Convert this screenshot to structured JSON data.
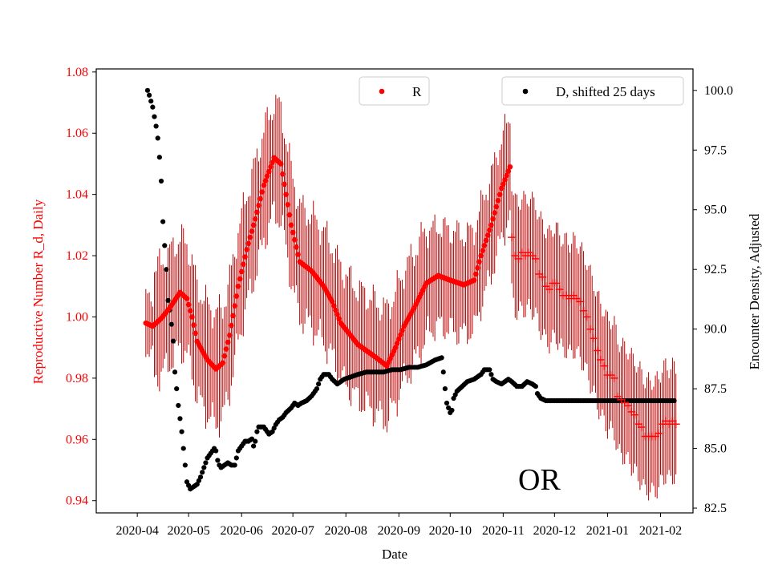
{
  "chart_data": {
    "type": "scatter",
    "xlabel": "Date",
    "ylabel_left": "Reproductive Number R_d, Daily",
    "ylabel_right": "Encounter Density, Adjusted",
    "annotation": "OR",
    "x_ticks": [
      "2020-04",
      "2020-05",
      "2020-06",
      "2020-07",
      "2020-08",
      "2020-09",
      "2020-10",
      "2020-11",
      "2020-12",
      "2021-01",
      "2021-02"
    ],
    "y_left_ticks": [
      "0.94",
      "0.96",
      "0.98",
      "1.00",
      "1.02",
      "1.04",
      "1.06",
      "1.08"
    ],
    "y_right_ticks": [
      "82.5",
      "85.0",
      "87.5",
      "90.0",
      "92.5",
      "95.0",
      "97.5",
      "100.0"
    ],
    "y_left_range": [
      0.936,
      1.081
    ],
    "y_right_range": [
      82.3,
      100.9
    ],
    "x_range_days_from_2020_03_01": [
      7,
      356
    ],
    "legend": {
      "r_label": "R",
      "d_label": "D, shifted 25 days"
    },
    "colors": {
      "r": "#ff0000",
      "error_bar": "#bb0000",
      "d": "#000000",
      "left_axis": "#ff0000"
    },
    "r_anchor_points": [
      [
        36,
        0.998
      ],
      [
        40,
        0.997
      ],
      [
        45,
        0.9995
      ],
      [
        50,
        1.003
      ],
      [
        56,
        1.008
      ],
      [
        60,
        1.006
      ],
      [
        63,
        1.0
      ],
      [
        66,
        0.992
      ],
      [
        72,
        0.986
      ],
      [
        77,
        0.983
      ],
      [
        81,
        0.985
      ],
      [
        85,
        0.994
      ],
      [
        90,
        1.01
      ],
      [
        95,
        1.022
      ],
      [
        100,
        1.032
      ],
      [
        105,
        1.043
      ],
      [
        111,
        1.052
      ],
      [
        115,
        1.05
      ],
      [
        118,
        1.04
      ],
      [
        121,
        1.03
      ],
      [
        126,
        1.018
      ],
      [
        133,
        1.015
      ],
      [
        140,
        1.01
      ],
      [
        145,
        1.005
      ],
      [
        150,
        0.998
      ],
      [
        160,
        0.991
      ],
      [
        170,
        0.987
      ],
      [
        177,
        0.984
      ],
      [
        182,
        0.99
      ],
      [
        187,
        0.997
      ],
      [
        193,
        1.003
      ],
      [
        200,
        1.011
      ],
      [
        207,
        1.0135
      ],
      [
        214,
        1.012
      ],
      [
        222,
        1.0105
      ],
      [
        228,
        1.012
      ],
      [
        232,
        1.02
      ],
      [
        238,
        1.03
      ],
      [
        244,
        1.042
      ],
      [
        249,
        1.049
      ]
    ],
    "r_forecast_points": [
      [
        250,
        1.026
      ],
      [
        252,
        1.02
      ],
      [
        254,
        1.019
      ],
      [
        256,
        1.021
      ],
      [
        258,
        1.02
      ],
      [
        260,
        1.021
      ],
      [
        262,
        1.02
      ],
      [
        264,
        1.019
      ],
      [
        266,
        1.014
      ],
      [
        268,
        1.013
      ],
      [
        270,
        1.01
      ],
      [
        272,
        1.009
      ],
      [
        274,
        1.011
      ],
      [
        276,
        1.011
      ],
      [
        278,
        1.009
      ],
      [
        280,
        1.007
      ],
      [
        282,
        1.007
      ],
      [
        284,
        1.006
      ],
      [
        286,
        1.007
      ],
      [
        288,
        1.006
      ],
      [
        290,
        1.005
      ],
      [
        292,
        1.002
      ],
      [
        294,
        1.0
      ],
      [
        296,
        0.996
      ],
      [
        298,
        0.993
      ],
      [
        300,
        0.989
      ],
      [
        302,
        0.986
      ],
      [
        304,
        0.984
      ],
      [
        306,
        0.981
      ],
      [
        308,
        0.981
      ],
      [
        310,
        0.98
      ],
      [
        312,
        0.974
      ],
      [
        314,
        0.973
      ],
      [
        316,
        0.972
      ],
      [
        318,
        0.971
      ],
      [
        320,
        0.969
      ],
      [
        322,
        0.968
      ],
      [
        324,
        0.965
      ],
      [
        326,
        0.964
      ],
      [
        328,
        0.961
      ],
      [
        330,
        0.961
      ],
      [
        332,
        0.961
      ],
      [
        334,
        0.961
      ],
      [
        336,
        0.962
      ],
      [
        338,
        0.965
      ],
      [
        340,
        0.966
      ],
      [
        342,
        0.965
      ],
      [
        344,
        0.966
      ],
      [
        346,
        0.965
      ]
    ],
    "d_anchor_points": [
      [
        37,
        100.0
      ],
      [
        38,
        99.8
      ],
      [
        40,
        99.3
      ],
      [
        42,
        98.5
      ],
      [
        43,
        98.0
      ],
      [
        44,
        97.2
      ],
      [
        45,
        96.2
      ],
      [
        46,
        94.5
      ],
      [
        48,
        92.5
      ],
      [
        49,
        91.2
      ],
      [
        50,
        90.8
      ],
      [
        51,
        90.2
      ],
      [
        52,
        89.5
      ],
      [
        53,
        88.2
      ],
      [
        55,
        86.8
      ],
      [
        57,
        85.7
      ],
      [
        59,
        84.3
      ],
      [
        60,
        83.6
      ],
      [
        62,
        83.3
      ],
      [
        64,
        83.4
      ],
      [
        66,
        83.5
      ],
      [
        68,
        83.8
      ],
      [
        70,
        84.2
      ],
      [
        72,
        84.6
      ],
      [
        74,
        84.8
      ],
      [
        76,
        85.0
      ],
      [
        77,
        84.9
      ],
      [
        78,
        84.5
      ],
      [
        79,
        84.3
      ],
      [
        80,
        84.2
      ],
      [
        82,
        84.3
      ],
      [
        84,
        84.4
      ],
      [
        86,
        84.3
      ],
      [
        88,
        84.3
      ],
      [
        90,
        84.9
      ],
      [
        92,
        85.1
      ],
      [
        94,
        85.3
      ],
      [
        96,
        85.3
      ],
      [
        98,
        85.4
      ],
      [
        99,
        85.1
      ],
      [
        100,
        85.3
      ],
      [
        101,
        85.7
      ],
      [
        102,
        85.9
      ],
      [
        105,
        85.9
      ],
      [
        108,
        85.6
      ],
      [
        110,
        85.7
      ],
      [
        112,
        86.0
      ],
      [
        114,
        86.2
      ],
      [
        116,
        86.3
      ],
      [
        118,
        86.5
      ],
      [
        121,
        86.7
      ],
      [
        123,
        86.9
      ],
      [
        125,
        86.8
      ],
      [
        127,
        86.9
      ],
      [
        130,
        87.0
      ],
      [
        133,
        87.2
      ],
      [
        136,
        87.5
      ],
      [
        138,
        87.9
      ],
      [
        140,
        88.1
      ],
      [
        143,
        88.1
      ],
      [
        145,
        87.9
      ],
      [
        148,
        87.7
      ],
      [
        152,
        87.9
      ],
      [
        156,
        88.0
      ],
      [
        160,
        88.1
      ],
      [
        165,
        88.2
      ],
      [
        170,
        88.2
      ],
      [
        175,
        88.2
      ],
      [
        180,
        88.3
      ],
      [
        185,
        88.3
      ],
      [
        190,
        88.4
      ],
      [
        195,
        88.4
      ],
      [
        200,
        88.5
      ],
      [
        205,
        88.7
      ],
      [
        209,
        88.8
      ],
      [
        210,
        88.2
      ],
      [
        211,
        87.5
      ],
      [
        212,
        86.9
      ],
      [
        214,
        86.5
      ],
      [
        215,
        86.6
      ],
      [
        216,
        87.1
      ],
      [
        218,
        87.4
      ],
      [
        221,
        87.6
      ],
      [
        224,
        87.8
      ],
      [
        228,
        87.9
      ],
      [
        232,
        88.1
      ],
      [
        234,
        88.3
      ],
      [
        237,
        88.3
      ],
      [
        239,
        87.9
      ],
      [
        241,
        87.8
      ],
      [
        244,
        87.7
      ],
      [
        246,
        87.8
      ],
      [
        248,
        87.9
      ],
      [
        250,
        87.8
      ],
      [
        253,
        87.6
      ],
      [
        256,
        87.6
      ],
      [
        259,
        87.8
      ],
      [
        262,
        87.7
      ],
      [
        264,
        87.6
      ],
      [
        265,
        87.3
      ],
      [
        267,
        87.1
      ],
      [
        270,
        87.0
      ],
      [
        345,
        87.0
      ]
    ],
    "d_forecast_range": [
      271,
      346
    ],
    "d_forecast_value": 87.0
  }
}
